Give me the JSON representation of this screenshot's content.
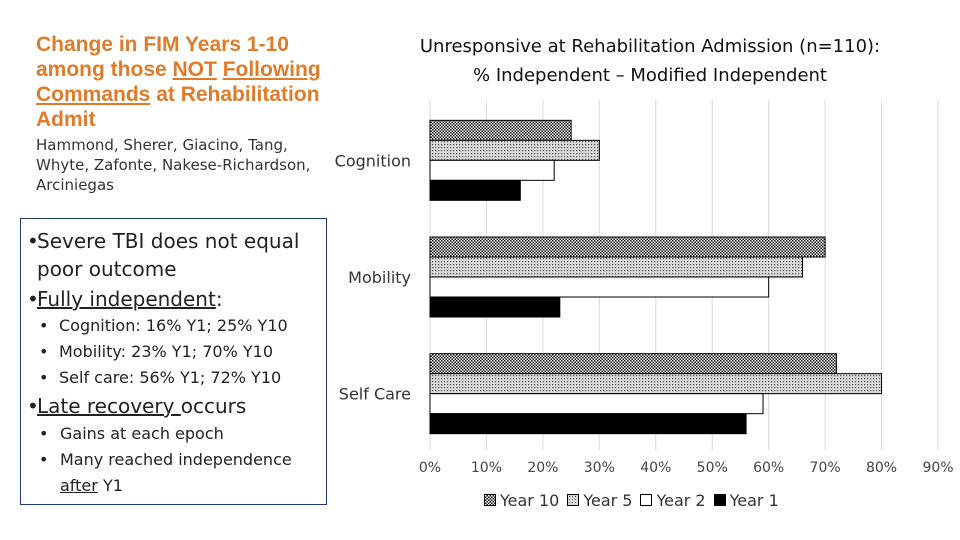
{
  "left": {
    "title_part1": "Change in FIM Years 1-10 among those ",
    "title_not": "NOT",
    "title_following": "Following Commands",
    "title_part2": " at Rehabilitation Admit",
    "authors": "Hammond, Sherer, Giacino, Tang, Whyte, Zafonte, Nakese-Richardson, Arciniegas",
    "bullets": {
      "b1": "Severe TBI does not equal poor outcome",
      "b2_u": "Fully independent",
      "b2_rest": ":",
      "b2a": "Cognition: 16% Y1; 25% Y10",
      "b2b": "Mobility: 23% Y1; 70% Y10",
      "b2c": "Self care: 56% Y1; 72% Y10",
      "b3_u": "Late recovery ",
      "b3_rest": "occurs",
      "b3a": "Gains at each epoch",
      "b3b_1": "Many reached independence",
      "b3b_u": "after",
      "b3b_2": " Y1"
    }
  },
  "chart_data": {
    "type": "bar",
    "orientation": "horizontal",
    "title_line1": "Unresponsive at Rehabilitation Admission (n=110):",
    "title_line2": "% Independent – Modified Independent",
    "categories": [
      "Cognition",
      "Mobility",
      "Self Care"
    ],
    "series": [
      {
        "name": "Year 10",
        "values": [
          25,
          70,
          72
        ],
        "fill": "pattern-checker"
      },
      {
        "name": "Year 5",
        "values": [
          30,
          66,
          80
        ],
        "fill": "pattern-dots"
      },
      {
        "name": "Year 2",
        "values": [
          22,
          60,
          59
        ],
        "fill": "#ffffff"
      },
      {
        "name": "Year 1",
        "values": [
          16,
          23,
          56
        ],
        "fill": "#000000"
      }
    ],
    "xlim": [
      0,
      90
    ],
    "xticks": [
      0,
      10,
      20,
      30,
      40,
      50,
      60,
      70,
      80,
      90
    ],
    "tick_suffix": "%",
    "grid": true,
    "legend_position": "bottom"
  }
}
